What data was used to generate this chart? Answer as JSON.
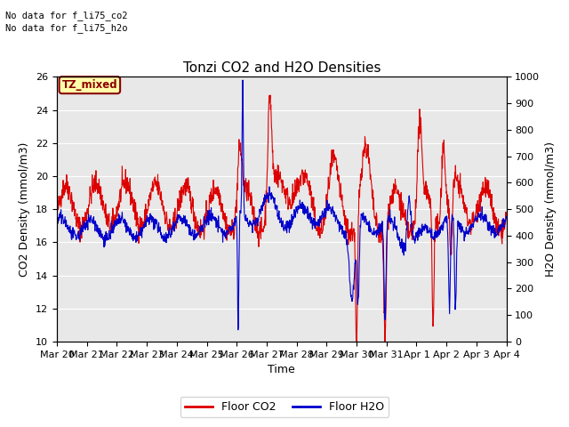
{
  "title": "Tonzi CO2 and H2O Densities",
  "xlabel": "Time",
  "ylabel_left": "CO2 Density (mmol/m3)",
  "ylabel_right": "H2O Density (mmol/m3)",
  "ylim_left": [
    10,
    26
  ],
  "ylim_right": [
    0,
    1000
  ],
  "yticks_left": [
    10,
    12,
    14,
    16,
    18,
    20,
    22,
    24,
    26
  ],
  "yticks_right": [
    0,
    100,
    200,
    300,
    400,
    500,
    600,
    700,
    800,
    900,
    1000
  ],
  "xtick_labels": [
    "Mar 20",
    "Mar 21",
    "Mar 22",
    "Mar 23",
    "Mar 24",
    "Mar 25",
    "Mar 26",
    "Mar 27",
    "Mar 28",
    "Mar 29",
    "Mar 30",
    "Mar 31",
    "Apr 1",
    "Apr 2",
    "Apr 3",
    "Apr 4"
  ],
  "no_data_text1": "No data for f_li75_co2",
  "no_data_text2": "No data for f_li75_h2o",
  "annotation_text": "TZ_mixed",
  "annotation_bg": "#ffffaa",
  "annotation_border": "#8b0000",
  "annotation_text_color": "#8b0000",
  "co2_color": "#dd0000",
  "h2o_color": "#0000cc",
  "legend_co2": "Floor CO2",
  "legend_h2o": "Floor H2O",
  "background_color": "#e8e8e8",
  "grid_color": "#ffffff",
  "title_fontsize": 11,
  "label_fontsize": 9,
  "tick_fontsize": 8,
  "nodata_fontsize": 7.5,
  "annotation_fontsize": 8.5
}
